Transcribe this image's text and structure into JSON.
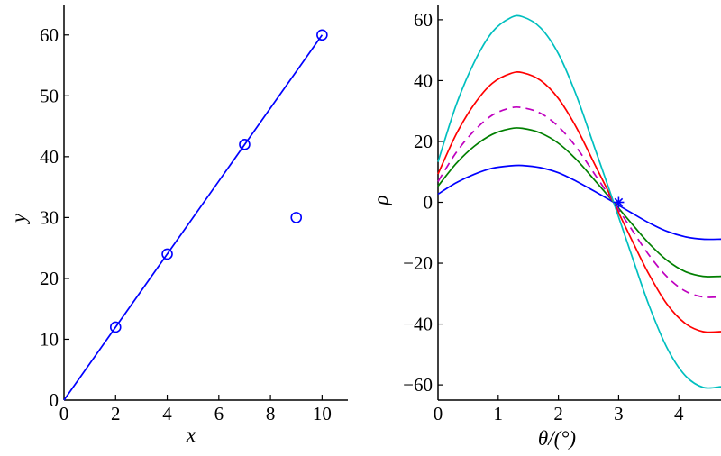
{
  "chart_data": [
    {
      "type": "scatter",
      "title": "",
      "xlabel": "x",
      "ylabel": "y",
      "xlim": [
        0,
        11
      ],
      "ylim": [
        0,
        65
      ],
      "xticks": [
        0,
        2,
        4,
        6,
        8,
        10
      ],
      "yticks": [
        0,
        10,
        20,
        30,
        40,
        50,
        60
      ],
      "xtick_labels": [
        "0",
        "2",
        "4",
        "6",
        "8",
        "10"
      ],
      "ytick_labels": [
        "0",
        "10",
        "20",
        "30",
        "40",
        "50",
        "60"
      ],
      "series": [
        {
          "style": "line",
          "color": "#0000ff",
          "points": [
            [
              0,
              0
            ],
            [
              10,
              60
            ]
          ]
        },
        {
          "style": "circle-markers",
          "color": "#0000ff",
          "points": [
            [
              2,
              12
            ],
            [
              4,
              24
            ],
            [
              7,
              42
            ],
            [
              9,
              30
            ],
            [
              10,
              60
            ]
          ]
        }
      ],
      "grid": false
    },
    {
      "type": "line",
      "title": "",
      "xlabel": "θ/(°)",
      "ylabel": "ρ",
      "xlim": [
        0,
        4.7
      ],
      "ylim": [
        -65,
        65
      ],
      "xticks": [
        0,
        1,
        2,
        3,
        4
      ],
      "yticks": [
        -60,
        -40,
        -20,
        0,
        20,
        40,
        60
      ],
      "xtick_labels": [
        "0",
        "1",
        "2",
        "3",
        "4"
      ],
      "ytick_labels": [
        "−60",
        "−40",
        "−20",
        "0",
        "20",
        "40",
        "60"
      ],
      "series": [
        {
          "color": "#0000ff",
          "dash": "solid",
          "x": [
            0,
            0.3,
            0.6,
            0.9,
            1.2,
            1.4,
            1.7,
            2.0,
            2.3,
            2.6,
            2.9,
            3.2,
            3.5,
            3.8,
            4.1,
            4.4,
            4.7
          ],
          "y": [
            2.7,
            6.4,
            9.2,
            11.2,
            12.0,
            12.1,
            11.4,
            9.7,
            6.9,
            3.6,
            0.2,
            -3.3,
            -6.7,
            -9.5,
            -11.3,
            -12.1,
            -12.1
          ]
        },
        {
          "color": "#007f00",
          "dash": "solid",
          "x": [
            0,
            0.3,
            0.6,
            0.9,
            1.2,
            1.4,
            1.7,
            2.0,
            2.3,
            2.6,
            2.9,
            3.2,
            3.5,
            3.8,
            4.1,
            4.4,
            4.7
          ],
          "y": [
            5.3,
            12.7,
            18.4,
            22.3,
            24.2,
            24.3,
            22.8,
            19.4,
            14.0,
            7.3,
            0.4,
            -6.6,
            -13.4,
            -19.0,
            -22.7,
            -24.3,
            -24.3
          ]
        },
        {
          "color": "#bf00bf",
          "dash": "dashed",
          "x": [
            0,
            0.3,
            0.6,
            0.9,
            1.2,
            1.4,
            1.7,
            2.0,
            2.3,
            2.6,
            2.9,
            3.2,
            3.5,
            3.8,
            4.1,
            4.4,
            4.7
          ],
          "y": [
            6.8,
            16.3,
            23.5,
            28.6,
            31.0,
            31.1,
            29.3,
            24.9,
            18.0,
            9.3,
            0.5,
            -8.4,
            -17.2,
            -24.4,
            -29.1,
            -31.1,
            -31.1
          ]
        },
        {
          "color": "#ff0000",
          "dash": "solid",
          "x": [
            0,
            0.3,
            0.6,
            0.9,
            1.2,
            1.4,
            1.7,
            2.0,
            2.3,
            2.6,
            2.9,
            3.2,
            3.5,
            3.8,
            4.1,
            4.4,
            4.7
          ],
          "y": [
            9.3,
            22.3,
            32.2,
            39.1,
            42.3,
            42.6,
            40.1,
            34.1,
            24.5,
            12.6,
            0.7,
            -11.6,
            -23.5,
            -33.4,
            -39.7,
            -42.5,
            -42.5
          ]
        },
        {
          "color": "#00bfbf",
          "dash": "solid",
          "x": [
            0,
            0.3,
            0.6,
            0.9,
            1.2,
            1.4,
            1.7,
            2.0,
            2.3,
            2.6,
            2.9,
            3.2,
            3.5,
            3.8,
            4.1,
            4.4,
            4.7
          ],
          "y": [
            13.3,
            31.9,
            46.0,
            55.9,
            60.6,
            61.0,
            57.4,
            48.8,
            35.0,
            18.0,
            1.0,
            -16.5,
            -33.6,
            -47.7,
            -56.8,
            -60.8,
            -60.6
          ]
        }
      ],
      "markers": [
        {
          "symbol": "asterisk",
          "color": "#0000ff",
          "point": [
            3,
            0
          ]
        }
      ],
      "grid": false
    }
  ]
}
